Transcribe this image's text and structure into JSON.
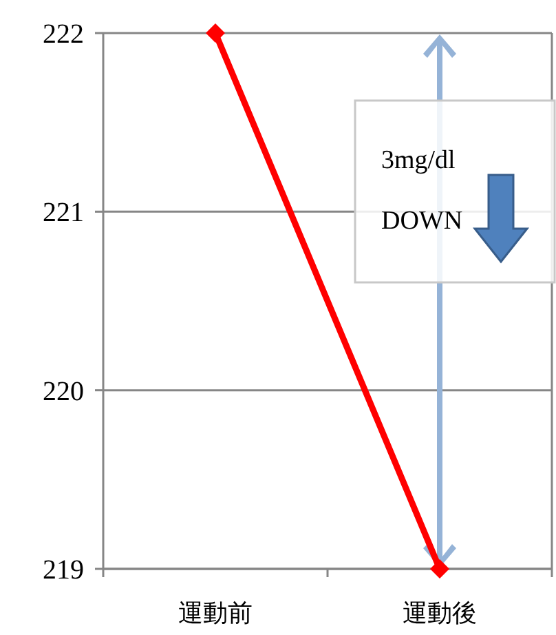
{
  "chart_data": {
    "type": "line",
    "categories": [
      "運動前",
      "運動後"
    ],
    "series": [
      {
        "color": "#ff0000",
        "values": [
          222,
          219
        ]
      }
    ],
    "ylim": [
      219,
      222
    ],
    "yticks": [
      219,
      220,
      221,
      222
    ],
    "grid": "y",
    "marker": "diamond",
    "line_style": "solid",
    "annotations": [
      "3mg/dl",
      "DOWN"
    ]
  }
}
